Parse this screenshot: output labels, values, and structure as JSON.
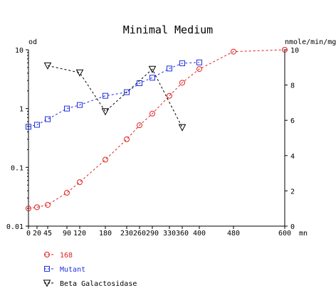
{
  "chart_data": {
    "type": "line",
    "title": "Minimal Medium",
    "xlabel": "",
    "xunit": "mn",
    "ylabel_left": "od",
    "ylabel_right": "nmole/min/mg",
    "x_ticks": [
      0,
      20,
      45,
      90,
      120,
      180,
      230,
      260,
      290,
      330,
      360,
      400,
      480,
      600
    ],
    "x_tick_labels": [
      "0",
      "20",
      "45",
      "90",
      "120",
      "180",
      "230",
      "260",
      "290",
      "330",
      "360",
      "400",
      "480",
      "600"
    ],
    "xlim": [
      0,
      600
    ],
    "ylim_left": [
      0.01,
      10
    ],
    "y_scale_left": "log",
    "y_ticks_left": [
      0.01,
      0.1,
      1,
      10
    ],
    "y_tick_labels_left": [
      "0.01",
      "0.1",
      "1",
      "10"
    ],
    "ylim_right": [
      0,
      10
    ],
    "y_ticks_right": [
      0,
      2,
      4,
      6,
      8,
      10
    ],
    "y_tick_labels_right": [
      "0",
      "2",
      "4",
      "6",
      "8",
      "10"
    ],
    "grid": false,
    "legend_position": "bottom-left",
    "series": [
      {
        "name": "168",
        "axis": "left",
        "marker": "circle",
        "color": "#e02020",
        "x": [
          0,
          20,
          45,
          90,
          120,
          180,
          230,
          260,
          290,
          330,
          360,
          400,
          480,
          600
        ],
        "y": [
          0.02,
          0.021,
          0.023,
          0.037,
          0.056,
          0.135,
          0.3,
          0.52,
          0.82,
          1.65,
          2.75,
          4.7,
          9.3,
          10
        ]
      },
      {
        "name": "Mutant",
        "axis": "left",
        "marker": "square",
        "color": "#2030e0",
        "x": [
          0,
          20,
          45,
          90,
          120,
          180,
          230,
          260,
          290,
          330,
          360,
          400
        ],
        "y": [
          0.49,
          0.53,
          0.66,
          1.0,
          1.15,
          1.65,
          1.9,
          2.7,
          3.35,
          4.8,
          5.9,
          6.1
        ]
      },
      {
        "name": "Beta Galactosidase",
        "axis": "right",
        "marker": "triangle-down",
        "color": "#000000",
        "x": [
          45,
          120,
          180,
          290,
          360
        ],
        "y": [
          9.1,
          8.7,
          6.5,
          8.9,
          5.6
        ]
      }
    ]
  }
}
